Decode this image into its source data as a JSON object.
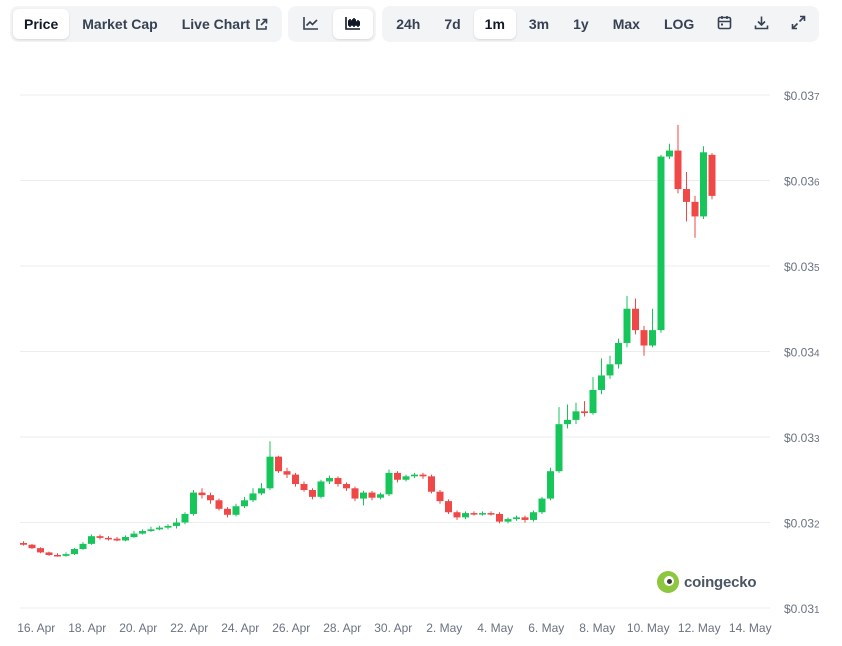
{
  "toolbar": {
    "metric_tabs": [
      {
        "label": "Price",
        "active": true
      },
      {
        "label": "Market Cap",
        "active": false
      },
      {
        "label": "Live Chart",
        "active": false
      }
    ],
    "chart_types": [
      {
        "icon": "line-chart-icon",
        "active": false
      },
      {
        "icon": "candlestick-chart-icon",
        "active": true
      }
    ],
    "ranges": [
      {
        "label": "24h",
        "active": false
      },
      {
        "label": "7d",
        "active": false
      },
      {
        "label": "1m",
        "active": true
      },
      {
        "label": "3m",
        "active": false
      },
      {
        "label": "1y",
        "active": false
      },
      {
        "label": "Max",
        "active": false
      },
      {
        "label": "LOG",
        "active": false
      }
    ],
    "actions": [
      "calendar-icon",
      "download-icon",
      "expand-icon"
    ]
  },
  "logo_text": "coingecko",
  "colors": {
    "up": "#16c65b",
    "down": "#f04747",
    "grid": "#ededed",
    "axis_text": "#6b7280"
  },
  "chart_data": {
    "type": "candlestick",
    "y_tick_labels": [
      {
        "value": 1,
        "label": "$0.031"
      },
      {
        "value": 2,
        "label": "$0.032"
      },
      {
        "value": 3,
        "label": "$0.033"
      },
      {
        "value": 4,
        "label": "$0.034"
      },
      {
        "value": 5,
        "label": "$0.035"
      },
      {
        "value": 6,
        "label": "$0.036"
      },
      {
        "value": 7,
        "label": "$0.037"
      }
    ],
    "y_unit_note": "",
    "ylim": [
      1,
      7
    ],
    "x_tick_labels": [
      "16. Apr",
      "18. Apr",
      "20. Apr",
      "22. Apr",
      "24. Apr",
      "26. Apr",
      "28. Apr",
      "30. Apr",
      "2. May",
      "4. May",
      "6. May",
      "8. May",
      "10. May",
      "12. May",
      "14. May"
    ],
    "x_tick_positions": [
      0.5,
      2.5,
      4.5,
      6.5,
      8.5,
      10.5,
      12.5,
      14.5,
      16.5,
      18.5,
      20.5,
      22.5,
      24.5,
      26.5,
      28.5
    ],
    "candles_per_day": 3,
    "candles": [
      [
        1.76,
        1.74,
        1.78,
        1.73
      ],
      [
        1.74,
        1.7,
        1.75,
        1.69
      ],
      [
        1.7,
        1.65,
        1.71,
        1.64
      ],
      [
        1.65,
        1.62,
        1.66,
        1.61
      ],
      [
        1.62,
        1.61,
        1.64,
        1.6
      ],
      [
        1.61,
        1.63,
        1.65,
        1.6
      ],
      [
        1.63,
        1.69,
        1.7,
        1.62
      ],
      [
        1.69,
        1.75,
        1.77,
        1.68
      ],
      [
        1.75,
        1.84,
        1.86,
        1.74
      ],
      [
        1.84,
        1.82,
        1.86,
        1.8
      ],
      [
        1.82,
        1.81,
        1.84,
        1.79
      ],
      [
        1.81,
        1.79,
        1.83,
        1.78
      ],
      [
        1.79,
        1.83,
        1.85,
        1.78
      ],
      [
        1.83,
        1.87,
        1.9,
        1.82
      ],
      [
        1.87,
        1.9,
        1.92,
        1.86
      ],
      [
        1.9,
        1.92,
        1.95,
        1.89
      ],
      [
        1.92,
        1.94,
        1.96,
        1.91
      ],
      [
        1.94,
        1.96,
        1.98,
        1.92
      ],
      [
        1.96,
        2.0,
        2.05,
        1.93
      ],
      [
        2.0,
        2.1,
        2.12,
        1.98
      ],
      [
        2.1,
        2.35,
        2.38,
        2.08
      ],
      [
        2.35,
        2.32,
        2.4,
        2.28
      ],
      [
        2.32,
        2.26,
        2.35,
        2.22
      ],
      [
        2.26,
        2.16,
        2.28,
        2.14
      ],
      [
        2.16,
        2.09,
        2.18,
        2.06
      ],
      [
        2.09,
        2.19,
        2.22,
        2.07
      ],
      [
        2.19,
        2.26,
        2.3,
        2.17
      ],
      [
        2.26,
        2.34,
        2.4,
        2.24
      ],
      [
        2.34,
        2.4,
        2.46,
        2.32
      ],
      [
        2.4,
        2.77,
        2.95,
        2.38
      ],
      [
        2.77,
        2.6,
        2.78,
        2.58
      ],
      [
        2.6,
        2.56,
        2.64,
        2.52
      ],
      [
        2.56,
        2.45,
        2.58,
        2.42
      ],
      [
        2.45,
        2.38,
        2.48,
        2.36
      ],
      [
        2.38,
        2.3,
        2.4,
        2.27
      ],
      [
        2.3,
        2.48,
        2.5,
        2.28
      ],
      [
        2.48,
        2.52,
        2.55,
        2.45
      ],
      [
        2.52,
        2.45,
        2.54,
        2.42
      ],
      [
        2.45,
        2.4,
        2.47,
        2.37
      ],
      [
        2.4,
        2.28,
        2.42,
        2.25
      ],
      [
        2.28,
        2.35,
        2.37,
        2.2
      ],
      [
        2.35,
        2.29,
        2.37,
        2.26
      ],
      [
        2.29,
        2.33,
        2.35,
        2.27
      ],
      [
        2.33,
        2.58,
        2.62,
        2.31
      ],
      [
        2.58,
        2.5,
        2.6,
        2.47
      ],
      [
        2.5,
        2.54,
        2.56,
        2.48
      ],
      [
        2.54,
        2.56,
        2.58,
        2.52
      ],
      [
        2.56,
        2.54,
        2.58,
        2.51
      ],
      [
        2.54,
        2.36,
        2.56,
        2.34
      ],
      [
        2.36,
        2.25,
        2.38,
        2.22
      ],
      [
        2.25,
        2.12,
        2.27,
        2.1
      ],
      [
        2.12,
        2.06,
        2.14,
        2.03
      ],
      [
        2.06,
        2.11,
        2.13,
        2.04
      ],
      [
        2.11,
        2.1,
        2.13,
        2.08
      ],
      [
        2.1,
        2.11,
        2.13,
        2.08
      ],
      [
        2.11,
        2.1,
        2.13,
        2.08
      ],
      [
        2.1,
        2.01,
        2.12,
        1.99
      ],
      [
        2.01,
        2.04,
        2.06,
        1.99
      ],
      [
        2.04,
        2.06,
        2.08,
        2.02
      ],
      [
        2.06,
        2.03,
        2.08,
        2.0
      ],
      [
        2.03,
        2.12,
        2.14,
        2.01
      ],
      [
        2.12,
        2.28,
        2.3,
        2.1
      ],
      [
        2.28,
        2.6,
        2.64,
        2.26
      ],
      [
        2.6,
        3.15,
        3.35,
        2.58
      ],
      [
        3.15,
        3.2,
        3.38,
        3.1
      ],
      [
        3.2,
        3.3,
        3.4,
        3.15
      ],
      [
        3.3,
        3.28,
        3.42,
        3.24
      ],
      [
        3.28,
        3.55,
        3.7,
        3.26
      ],
      [
        3.55,
        3.72,
        3.92,
        3.5
      ],
      [
        3.72,
        3.85,
        3.95,
        3.68
      ],
      [
        3.85,
        4.1,
        4.15,
        3.8
      ],
      [
        4.1,
        4.5,
        4.65,
        4.05
      ],
      [
        4.5,
        4.25,
        4.62,
        4.2
      ],
      [
        4.25,
        4.07,
        4.3,
        3.95
      ],
      [
        4.07,
        4.25,
        4.5,
        4.05
      ],
      [
        4.25,
        6.28,
        6.3,
        4.22
      ],
      [
        6.28,
        6.35,
        6.43,
        6.25
      ],
      [
        6.35,
        5.9,
        6.65,
        5.85
      ],
      [
        5.9,
        5.75,
        6.1,
        5.52
      ],
      [
        5.75,
        5.58,
        5.82,
        5.33
      ],
      [
        5.58,
        6.33,
        6.4,
        5.55
      ],
      [
        6.3,
        5.82,
        6.32,
        5.78
      ]
    ]
  }
}
